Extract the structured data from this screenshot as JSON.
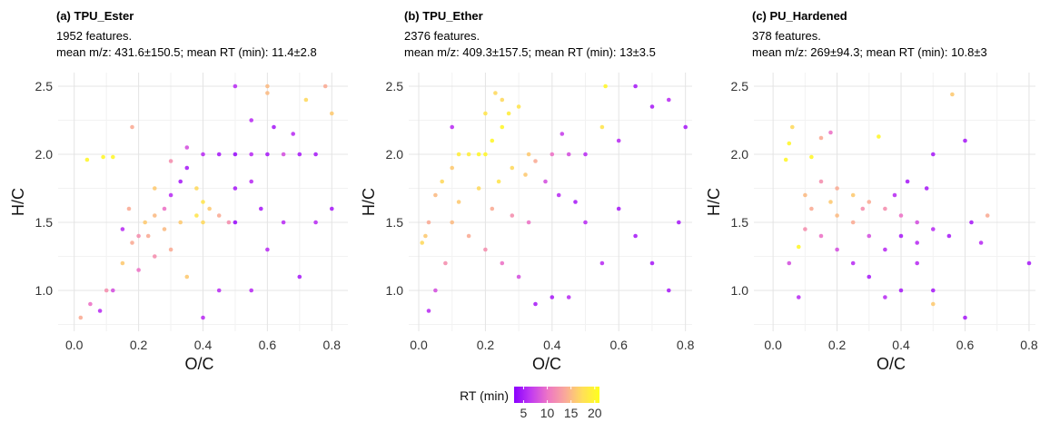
{
  "chart_data": [
    {
      "type": "scatter",
      "title": "(a) TPU_Ester",
      "subtitle_line1": "1952 features.",
      "subtitle_line2": "mean m/z: 431.6±150.5; mean RT (min): 11.4±2.8",
      "xlabel": "O/C",
      "ylabel": "H/C",
      "xlim": [
        -0.05,
        0.85
      ],
      "ylim": [
        0.7,
        2.6
      ],
      "xticks": [
        "0.0",
        "0.2",
        "0.4",
        "0.6",
        "0.8"
      ],
      "yticks": [
        "1.0",
        "1.5",
        "2.0",
        "2.5"
      ],
      "grid": true,
      "points": [
        {
          "x": 0.04,
          "y": 1.96,
          "rt": 20
        },
        {
          "x": 0.09,
          "y": 1.98,
          "rt": 20
        },
        {
          "x": 0.12,
          "y": 1.98,
          "rt": 20
        },
        {
          "x": 0.02,
          "y": 0.8,
          "rt": 14
        },
        {
          "x": 0.05,
          "y": 0.9,
          "rt": 10
        },
        {
          "x": 0.08,
          "y": 0.85,
          "rt": 6
        },
        {
          "x": 0.1,
          "y": 1.0,
          "rt": 12
        },
        {
          "x": 0.12,
          "y": 1.0,
          "rt": 8
        },
        {
          "x": 0.15,
          "y": 1.2,
          "rt": 16
        },
        {
          "x": 0.18,
          "y": 1.35,
          "rt": 14
        },
        {
          "x": 0.2,
          "y": 1.4,
          "rt": 12
        },
        {
          "x": 0.22,
          "y": 1.5,
          "rt": 16
        },
        {
          "x": 0.25,
          "y": 1.55,
          "rt": 15
        },
        {
          "x": 0.28,
          "y": 1.6,
          "rt": 10
        },
        {
          "x": 0.3,
          "y": 1.7,
          "rt": 6
        },
        {
          "x": 0.33,
          "y": 1.8,
          "rt": 5
        },
        {
          "x": 0.35,
          "y": 1.9,
          "rt": 5
        },
        {
          "x": 0.38,
          "y": 1.75,
          "rt": 17
        },
        {
          "x": 0.4,
          "y": 1.65,
          "rt": 18
        },
        {
          "x": 0.42,
          "y": 1.6,
          "rt": 16
        },
        {
          "x": 0.45,
          "y": 1.55,
          "rt": 14
        },
        {
          "x": 0.48,
          "y": 1.5,
          "rt": 12
        },
        {
          "x": 0.5,
          "y": 2.0,
          "rt": 4
        },
        {
          "x": 0.5,
          "y": 1.5,
          "rt": 4
        },
        {
          "x": 0.55,
          "y": 2.0,
          "rt": 6
        },
        {
          "x": 0.6,
          "y": 2.0,
          "rt": 5
        },
        {
          "x": 0.65,
          "y": 2.0,
          "rt": 8
        },
        {
          "x": 0.7,
          "y": 2.0,
          "rt": 5
        },
        {
          "x": 0.75,
          "y": 2.0,
          "rt": 5
        },
        {
          "x": 0.8,
          "y": 2.3,
          "rt": 16
        },
        {
          "x": 0.78,
          "y": 2.5,
          "rt": 14
        },
        {
          "x": 0.72,
          "y": 2.4,
          "rt": 17
        },
        {
          "x": 0.6,
          "y": 2.45,
          "rt": 15
        },
        {
          "x": 0.5,
          "y": 2.5,
          "rt": 6
        },
        {
          "x": 0.6,
          "y": 1.3,
          "rt": 6
        },
        {
          "x": 0.7,
          "y": 1.1,
          "rt": 5
        },
        {
          "x": 0.75,
          "y": 1.5,
          "rt": 6
        },
        {
          "x": 0.8,
          "y": 1.6,
          "rt": 5
        },
        {
          "x": 0.55,
          "y": 1.0,
          "rt": 6
        },
        {
          "x": 0.45,
          "y": 1.0,
          "rt": 6
        },
        {
          "x": 0.4,
          "y": 0.8,
          "rt": 6
        },
        {
          "x": 0.35,
          "y": 1.1,
          "rt": 16
        },
        {
          "x": 0.3,
          "y": 1.3,
          "rt": 14
        },
        {
          "x": 0.25,
          "y": 1.25,
          "rt": 12
        },
        {
          "x": 0.2,
          "y": 1.15,
          "rt": 10
        },
        {
          "x": 0.15,
          "y": 1.45,
          "rt": 6
        },
        {
          "x": 0.17,
          "y": 1.6,
          "rt": 14
        },
        {
          "x": 0.25,
          "y": 1.75,
          "rt": 16
        },
        {
          "x": 0.3,
          "y": 1.95,
          "rt": 12
        },
        {
          "x": 0.35,
          "y": 2.05,
          "rt": 8
        },
        {
          "x": 0.4,
          "y": 2.0,
          "rt": 6
        },
        {
          "x": 0.45,
          "y": 2.0,
          "rt": 5
        },
        {
          "x": 0.38,
          "y": 1.55,
          "rt": 18
        },
        {
          "x": 0.4,
          "y": 1.5,
          "rt": 17
        },
        {
          "x": 0.33,
          "y": 1.5,
          "rt": 16
        },
        {
          "x": 0.28,
          "y": 1.45,
          "rt": 15
        },
        {
          "x": 0.23,
          "y": 1.4,
          "rt": 14
        },
        {
          "x": 0.55,
          "y": 2.25,
          "rt": 6
        },
        {
          "x": 0.62,
          "y": 2.2,
          "rt": 5
        },
        {
          "x": 0.68,
          "y": 2.15,
          "rt": 6
        },
        {
          "x": 0.5,
          "y": 1.75,
          "rt": 5
        },
        {
          "x": 0.55,
          "y": 1.8,
          "rt": 6
        },
        {
          "x": 0.58,
          "y": 1.6,
          "rt": 5
        },
        {
          "x": 0.65,
          "y": 1.5,
          "rt": 6
        },
        {
          "x": 0.18,
          "y": 2.2,
          "rt": 14
        },
        {
          "x": 0.6,
          "y": 2.5,
          "rt": 15
        }
      ]
    },
    {
      "type": "scatter",
      "title": "(b) TPU_Ether",
      "subtitle_line1": "2376 features.",
      "subtitle_line2": "mean m/z: 409.3±157.5; mean RT (min): 13±3.5",
      "xlabel": "O/C",
      "ylabel": "H/C",
      "xlim": [
        -0.03,
        0.82
      ],
      "ylim": [
        0.7,
        2.6
      ],
      "xticks": [
        "0.0",
        "0.2",
        "0.4",
        "0.6",
        "0.8"
      ],
      "yticks": [
        "1.0",
        "1.5",
        "2.0",
        "2.5"
      ],
      "grid": true,
      "points": [
        {
          "x": 0.01,
          "y": 1.35,
          "rt": 17
        },
        {
          "x": 0.02,
          "y": 1.4,
          "rt": 16
        },
        {
          "x": 0.03,
          "y": 1.5,
          "rt": 14
        },
        {
          "x": 0.05,
          "y": 1.7,
          "rt": 15
        },
        {
          "x": 0.07,
          "y": 1.8,
          "rt": 17
        },
        {
          "x": 0.1,
          "y": 1.9,
          "rt": 16
        },
        {
          "x": 0.12,
          "y": 2.0,
          "rt": 19
        },
        {
          "x": 0.15,
          "y": 2.0,
          "rt": 19
        },
        {
          "x": 0.18,
          "y": 2.0,
          "rt": 20
        },
        {
          "x": 0.2,
          "y": 2.0,
          "rt": 20
        },
        {
          "x": 0.22,
          "y": 2.1,
          "rt": 20
        },
        {
          "x": 0.25,
          "y": 2.2,
          "rt": 20
        },
        {
          "x": 0.27,
          "y": 2.3,
          "rt": 19
        },
        {
          "x": 0.3,
          "y": 2.35,
          "rt": 18
        },
        {
          "x": 0.25,
          "y": 2.4,
          "rt": 17
        },
        {
          "x": 0.33,
          "y": 2.0,
          "rt": 16
        },
        {
          "x": 0.35,
          "y": 1.95,
          "rt": 14
        },
        {
          "x": 0.4,
          "y": 2.0,
          "rt": 10
        },
        {
          "x": 0.45,
          "y": 2.0,
          "rt": 8
        },
        {
          "x": 0.5,
          "y": 2.0,
          "rt": 6
        },
        {
          "x": 0.55,
          "y": 2.2,
          "rt": 18
        },
        {
          "x": 0.6,
          "y": 2.1,
          "rt": 6
        },
        {
          "x": 0.65,
          "y": 2.5,
          "rt": 5
        },
        {
          "x": 0.7,
          "y": 2.35,
          "rt": 5
        },
        {
          "x": 0.75,
          "y": 2.4,
          "rt": 6
        },
        {
          "x": 0.8,
          "y": 2.2,
          "rt": 5
        },
        {
          "x": 0.56,
          "y": 2.5,
          "rt": 20
        },
        {
          "x": 0.6,
          "y": 1.6,
          "rt": 5
        },
        {
          "x": 0.65,
          "y": 1.4,
          "rt": 5
        },
        {
          "x": 0.7,
          "y": 1.2,
          "rt": 5
        },
        {
          "x": 0.75,
          "y": 1.0,
          "rt": 5
        },
        {
          "x": 0.78,
          "y": 1.5,
          "rt": 5
        },
        {
          "x": 0.55,
          "y": 1.2,
          "rt": 6
        },
        {
          "x": 0.45,
          "y": 0.95,
          "rt": 6
        },
        {
          "x": 0.4,
          "y": 0.95,
          "rt": 5
        },
        {
          "x": 0.35,
          "y": 0.9,
          "rt": 5
        },
        {
          "x": 0.3,
          "y": 1.1,
          "rt": 8
        },
        {
          "x": 0.25,
          "y": 1.2,
          "rt": 10
        },
        {
          "x": 0.2,
          "y": 1.3,
          "rt": 12
        },
        {
          "x": 0.15,
          "y": 1.4,
          "rt": 14
        },
        {
          "x": 0.1,
          "y": 1.5,
          "rt": 15
        },
        {
          "x": 0.08,
          "y": 1.2,
          "rt": 12
        },
        {
          "x": 0.05,
          "y": 1.0,
          "rt": 8
        },
        {
          "x": 0.03,
          "y": 0.85,
          "rt": 6
        },
        {
          "x": 0.12,
          "y": 1.65,
          "rt": 16
        },
        {
          "x": 0.18,
          "y": 1.75,
          "rt": 17
        },
        {
          "x": 0.24,
          "y": 1.8,
          "rt": 18
        },
        {
          "x": 0.28,
          "y": 1.9,
          "rt": 17
        },
        {
          "x": 0.32,
          "y": 1.85,
          "rt": 16
        },
        {
          "x": 0.38,
          "y": 1.8,
          "rt": 8
        },
        {
          "x": 0.42,
          "y": 1.7,
          "rt": 6
        },
        {
          "x": 0.47,
          "y": 1.65,
          "rt": 5
        },
        {
          "x": 0.5,
          "y": 1.5,
          "rt": 6
        },
        {
          "x": 0.22,
          "y": 1.6,
          "rt": 14
        },
        {
          "x": 0.28,
          "y": 1.55,
          "rt": 12
        },
        {
          "x": 0.33,
          "y": 1.5,
          "rt": 10
        },
        {
          "x": 0.2,
          "y": 2.3,
          "rt": 18
        },
        {
          "x": 0.23,
          "y": 2.45,
          "rt": 17
        },
        {
          "x": 0.1,
          "y": 2.2,
          "rt": 6
        },
        {
          "x": 0.43,
          "y": 2.15,
          "rt": 7
        }
      ]
    },
    {
      "type": "scatter",
      "title": "(c) PU_Hardened",
      "subtitle_line1": "378 features.",
      "subtitle_line2": "mean m/z: 269±94.3; mean RT (min): 10.8±3",
      "xlabel": "O/C",
      "ylabel": "H/C",
      "xlim": [
        -0.06,
        0.82
      ],
      "ylim": [
        0.7,
        2.6
      ],
      "xticks": [
        "0.0",
        "0.2",
        "0.4",
        "0.6",
        "0.8"
      ],
      "yticks": [
        "1.0",
        "1.5",
        "2.0",
        "2.5"
      ],
      "grid": true,
      "points": [
        {
          "x": 0.04,
          "y": 1.96,
          "rt": 20
        },
        {
          "x": 0.05,
          "y": 2.08,
          "rt": 20
        },
        {
          "x": 0.12,
          "y": 1.98,
          "rt": 20
        },
        {
          "x": 0.06,
          "y": 2.2,
          "rt": 17
        },
        {
          "x": 0.08,
          "y": 1.32,
          "rt": 20
        },
        {
          "x": 0.33,
          "y": 2.13,
          "rt": 20
        },
        {
          "x": 0.56,
          "y": 2.44,
          "rt": 16
        },
        {
          "x": 0.15,
          "y": 2.12,
          "rt": 14
        },
        {
          "x": 0.18,
          "y": 2.16,
          "rt": 10
        },
        {
          "x": 0.1,
          "y": 1.7,
          "rt": 15
        },
        {
          "x": 0.12,
          "y": 1.6,
          "rt": 14
        },
        {
          "x": 0.15,
          "y": 1.8,
          "rt": 12
        },
        {
          "x": 0.2,
          "y": 1.75,
          "rt": 14
        },
        {
          "x": 0.25,
          "y": 1.7,
          "rt": 16
        },
        {
          "x": 0.3,
          "y": 1.65,
          "rt": 14
        },
        {
          "x": 0.35,
          "y": 1.6,
          "rt": 12
        },
        {
          "x": 0.4,
          "y": 1.55,
          "rt": 10
        },
        {
          "x": 0.45,
          "y": 1.5,
          "rt": 8
        },
        {
          "x": 0.5,
          "y": 1.45,
          "rt": 6
        },
        {
          "x": 0.5,
          "y": 2.0,
          "rt": 5
        },
        {
          "x": 0.5,
          "y": 1.0,
          "rt": 5
        },
        {
          "x": 0.55,
          "y": 1.4,
          "rt": 5
        },
        {
          "x": 0.6,
          "y": 2.1,
          "rt": 5
        },
        {
          "x": 0.6,
          "y": 0.8,
          "rt": 5
        },
        {
          "x": 0.62,
          "y": 1.5,
          "rt": 5
        },
        {
          "x": 0.65,
          "y": 1.35,
          "rt": 6
        },
        {
          "x": 0.67,
          "y": 1.55,
          "rt": 14
        },
        {
          "x": 0.8,
          "y": 1.2,
          "rt": 5
        },
        {
          "x": 0.08,
          "y": 0.95,
          "rt": 6
        },
        {
          "x": 0.05,
          "y": 1.2,
          "rt": 8
        },
        {
          "x": 0.15,
          "y": 1.4,
          "rt": 10
        },
        {
          "x": 0.2,
          "y": 1.3,
          "rt": 8
        },
        {
          "x": 0.25,
          "y": 1.2,
          "rt": 6
        },
        {
          "x": 0.3,
          "y": 1.1,
          "rt": 5
        },
        {
          "x": 0.35,
          "y": 0.95,
          "rt": 6
        },
        {
          "x": 0.4,
          "y": 1.0,
          "rt": 5
        },
        {
          "x": 0.45,
          "y": 1.2,
          "rt": 6
        },
        {
          "x": 0.3,
          "y": 1.4,
          "rt": 8
        },
        {
          "x": 0.35,
          "y": 1.3,
          "rt": 6
        },
        {
          "x": 0.4,
          "y": 1.4,
          "rt": 5
        },
        {
          "x": 0.45,
          "y": 1.35,
          "rt": 6
        },
        {
          "x": 0.25,
          "y": 1.5,
          "rt": 14
        },
        {
          "x": 0.2,
          "y": 1.55,
          "rt": 15
        },
        {
          "x": 0.18,
          "y": 1.65,
          "rt": 16
        },
        {
          "x": 0.28,
          "y": 1.6,
          "rt": 12
        },
        {
          "x": 0.38,
          "y": 1.7,
          "rt": 6
        },
        {
          "x": 0.42,
          "y": 1.8,
          "rt": 5
        },
        {
          "x": 0.48,
          "y": 1.75,
          "rt": 5
        },
        {
          "x": 0.5,
          "y": 0.9,
          "rt": 16
        },
        {
          "x": 0.1,
          "y": 1.45,
          "rt": 12
        }
      ]
    }
  ],
  "legend": {
    "title": "RT (min)",
    "ticks": [
      "5",
      "10",
      "15",
      "20"
    ],
    "range": [
      3,
      21
    ],
    "colors": [
      "#8a00ff",
      "#c33cf0",
      "#ee77c4",
      "#f9a99a",
      "#ffdf5a",
      "#ffff1c"
    ]
  }
}
